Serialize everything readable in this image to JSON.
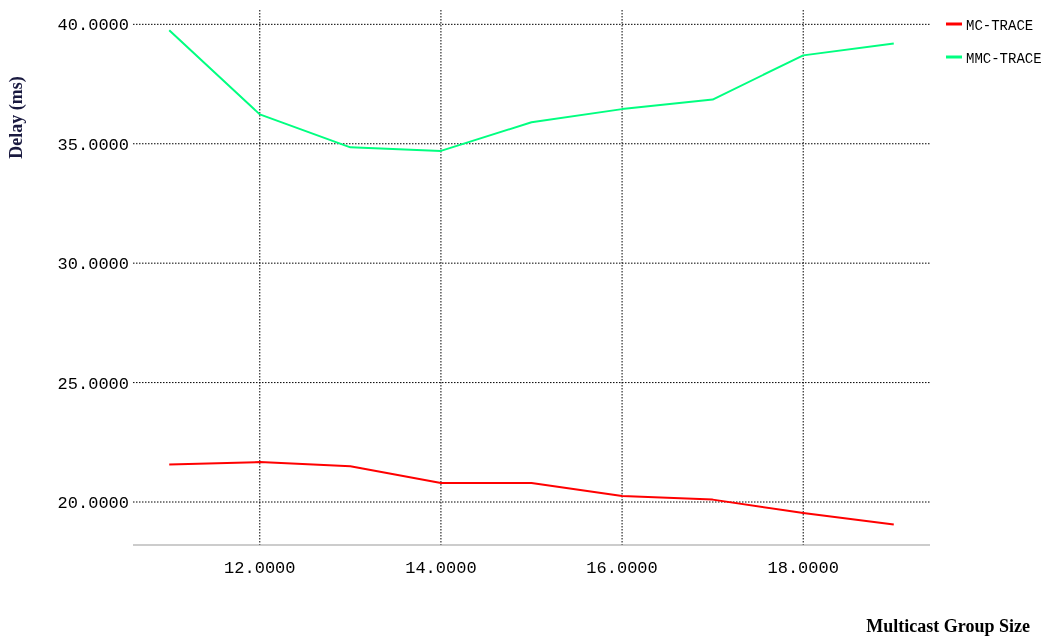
{
  "chart_data": {
    "type": "line",
    "xlabel": "Multicast Group Size",
    "ylabel": "Delay (ms)",
    "x": [
      11,
      12,
      13,
      14,
      15,
      16,
      17,
      18,
      19
    ],
    "series": [
      {
        "name": "MC-TRACE",
        "color": "#ff0000",
        "values": [
          21.57,
          21.67,
          21.5,
          20.8,
          20.8,
          20.25,
          20.1,
          19.54,
          19.06
        ]
      },
      {
        "name": "MMC-TRACE",
        "color": "#00ff80",
        "values": [
          39.75,
          36.23,
          34.85,
          34.7,
          35.9,
          36.45,
          36.85,
          38.7,
          39.2
        ]
      }
    ],
    "xlim": [
      10.6,
      19.4
    ],
    "ylim": [
      18.2,
      40.6
    ],
    "xticks": [
      {
        "value": 12,
        "label": "12.0000"
      },
      {
        "value": 14,
        "label": "14.0000"
      },
      {
        "value": 16,
        "label": "16.0000"
      },
      {
        "value": 18,
        "label": "18.0000"
      }
    ],
    "yticks": [
      {
        "value": 20,
        "label": "20.0000"
      },
      {
        "value": 25,
        "label": "25.0000"
      },
      {
        "value": 30,
        "label": "30.0000"
      },
      {
        "value": 35,
        "label": "35.0000"
      },
      {
        "value": 40,
        "label": "40.0000"
      }
    ],
    "grid": true,
    "legend": "top right",
    "marker": "none",
    "line_style": "solid"
  }
}
